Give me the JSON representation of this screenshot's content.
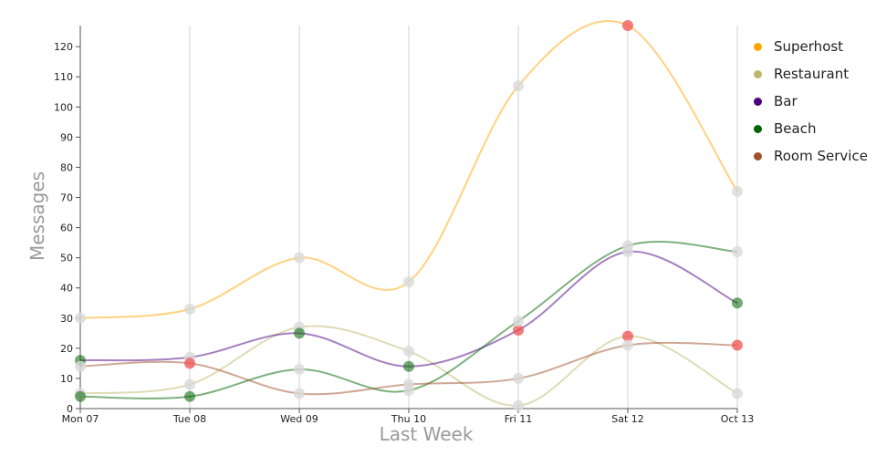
{
  "chart_data": {
    "type": "line",
    "xlabel": "Last Week",
    "ylabel": "Messages",
    "ylim": [
      0,
      127
    ],
    "yticks": [
      0,
      10,
      20,
      30,
      40,
      50,
      60,
      70,
      80,
      90,
      100,
      110,
      120
    ],
    "categories": [
      "Mon 07",
      "Tue 08",
      "Wed 09",
      "Thu 10",
      "Fri 11",
      "Sat 12",
      "Oct 13"
    ],
    "grid": "vertical",
    "legend_position": "right",
    "highlight_color": "#f05050",
    "marker_color": "#d9d9d9",
    "series": [
      {
        "name": "Superhost",
        "color": "#ffa500",
        "values": [
          30,
          33,
          50,
          42,
          107,
          127,
          72
        ],
        "highlight": [
          false,
          false,
          false,
          false,
          false,
          true,
          false
        ]
      },
      {
        "name": "Restaurant",
        "color": "#bdb76b",
        "values": [
          5,
          8,
          27,
          19,
          1,
          24,
          5
        ],
        "highlight": [
          false,
          false,
          false,
          false,
          false,
          true,
          false
        ]
      },
      {
        "name": "Bar",
        "color": "#4b0082",
        "values": [
          16,
          17,
          25,
          14,
          26,
          52,
          35
        ],
        "highlight": [
          false,
          false,
          false,
          false,
          true,
          false,
          false
        ]
      },
      {
        "name": "Beach",
        "color": "#006400",
        "values": [
          4,
          4,
          13,
          6,
          29,
          54,
          52
        ],
        "highlight": [
          false,
          false,
          false,
          false,
          false,
          false,
          false
        ],
        "marker_colors": {
          "1": "#006400"
        }
      },
      {
        "name": "Room Service",
        "color": "#a0522d",
        "values": [
          14,
          15,
          5,
          8,
          10,
          21,
          21
        ],
        "highlight": [
          false,
          true,
          false,
          false,
          false,
          false,
          true
        ]
      }
    ],
    "point_overrides": [
      {
        "series": "Bar",
        "index": 0,
        "color": "#006400"
      },
      {
        "series": "Bar",
        "index": 2,
        "color": "#006400"
      },
      {
        "series": "Bar",
        "index": 3,
        "color": "#006400"
      },
      {
        "series": "Bar",
        "index": 6,
        "color": "#006400"
      }
    ]
  }
}
